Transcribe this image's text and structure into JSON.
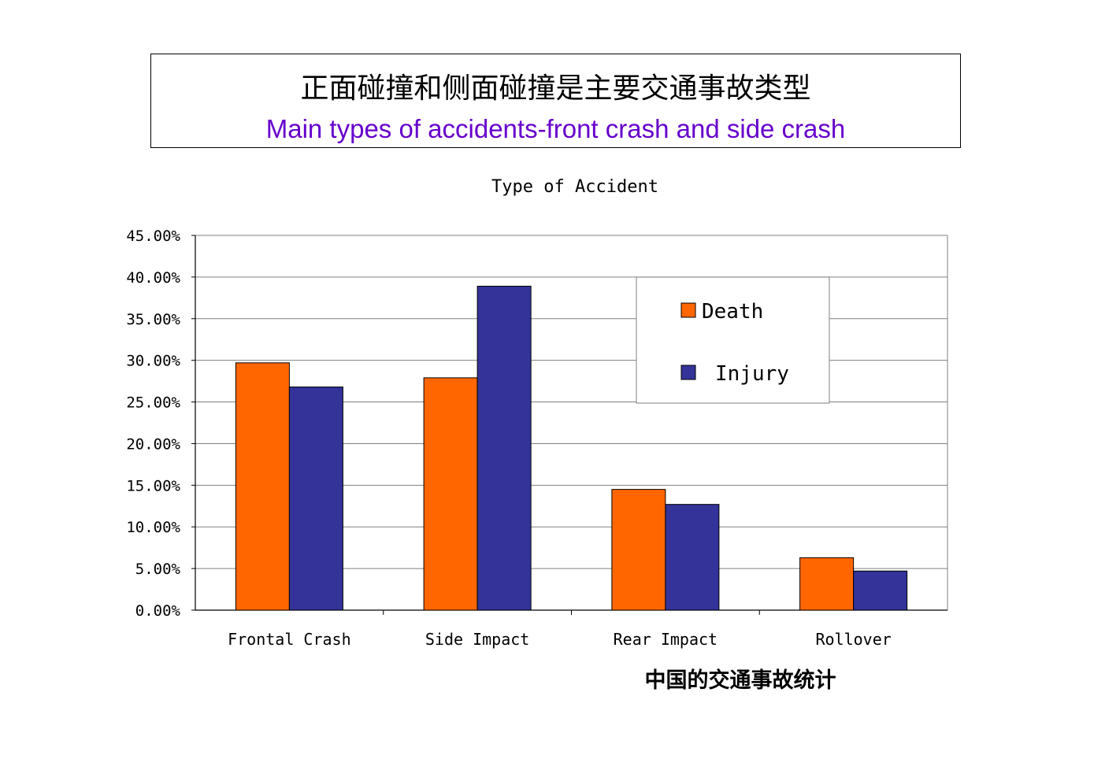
{
  "header": {
    "title_cn": "正面碰撞和侧面碰撞是主要交通事故类型",
    "title_en": "Main types of accidents-front crash and side crash",
    "title_en_color": "#6600cc"
  },
  "footnote": "中国的交通事故统计",
  "chart_data": {
    "type": "bar",
    "title": "Type of Accident",
    "xlabel": "",
    "ylabel": "",
    "categories": [
      "Frontal Crash",
      "Side Impact",
      "Rear Impact",
      "Rollover"
    ],
    "series": [
      {
        "name": "Death",
        "color": "#ff6600",
        "values": [
          29.7,
          27.9,
          14.5,
          6.3
        ]
      },
      {
        "name": "Injury",
        "color": "#333399",
        "values": [
          26.8,
          38.9,
          12.7,
          4.7
        ]
      }
    ],
    "ylim": [
      0,
      45
    ],
    "yticks": [
      "0.00%",
      "5.00%",
      "10.00%",
      "15.00%",
      "20.00%",
      "25.00%",
      "30.00%",
      "35.00%",
      "40.00%",
      "45.00%"
    ],
    "grid": true,
    "legend_position": "top-right"
  }
}
